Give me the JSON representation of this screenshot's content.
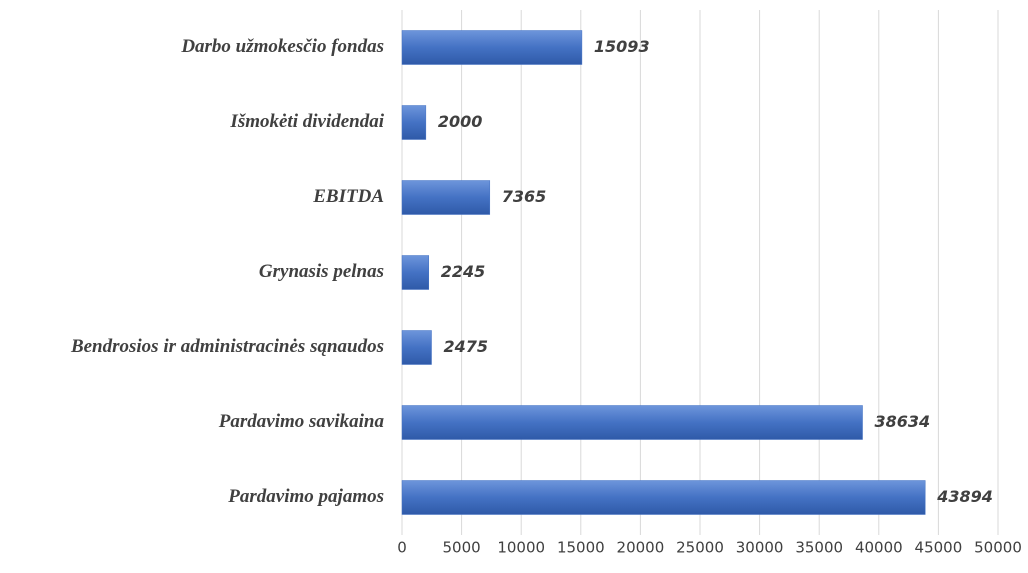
{
  "chart_data": {
    "type": "barh",
    "categories": [
      "Darbo užmokesčio fondas",
      "Išmokėti dividendai",
      "EBITDA",
      "Grynasis pelnas",
      "Bendrosios ir administracinės sąnaudos",
      "Pardavimo savikaina",
      "Pardavimo pajamos"
    ],
    "values": [
      15093,
      2000,
      7365,
      2245,
      2475,
      38634,
      43894
    ],
    "color": "#4472c4",
    "xlim": [
      0,
      50000
    ],
    "xticks": [
      0,
      5000,
      10000,
      15000,
      20000,
      25000,
      30000,
      35000,
      40000,
      45000,
      50000
    ],
    "grid": true
  }
}
